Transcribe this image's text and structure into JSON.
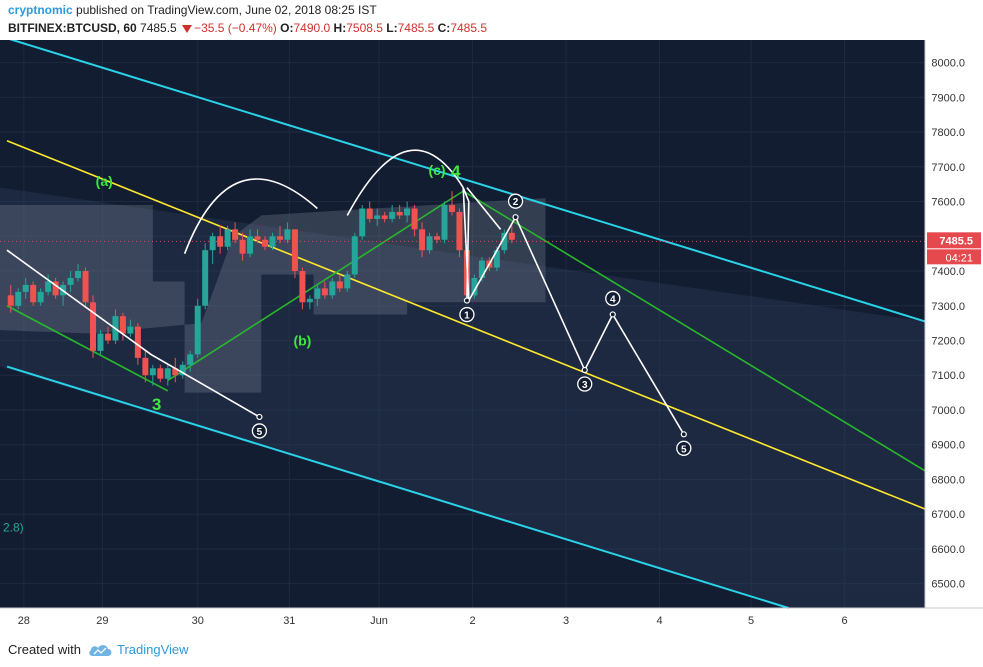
{
  "header": {
    "author": "cryptnomic",
    "published": "published on TradingView.com, June 02, 2018 08:25 IST",
    "symbol": "BITFINEX:BTCUSD, 60",
    "last": "7485.5",
    "change": "−35.5 (−0.47%)",
    "o_label": "O:",
    "o": "7490.0",
    "h_label": "H:",
    "h": "7508.5",
    "l_label": "L:",
    "l": "7485.5",
    "c_label": "C:",
    "c": "7485.5"
  },
  "footer": {
    "created": "Created with",
    "brand": "TradingView"
  },
  "colors": {
    "background": "#131d31",
    "up": "#26a69a",
    "down": "#ef5350",
    "channel_outer": "#29d3e8",
    "channel_mid": "#ffe82e",
    "channel_green": "#27b82b",
    "wave_text": "#3ee83e",
    "price_tag": "#e5484d"
  },
  "chart_data": {
    "type": "candlestick",
    "y_ticks": [
      "8000.0",
      "7900.0",
      "7800.0",
      "7700.0",
      "7600.0",
      "7500.0",
      "7400.0",
      "7300.0",
      "7200.0",
      "7100.0",
      "7000.0",
      "6900.0",
      "6800.0",
      "6700.0",
      "6600.0",
      "6500.0"
    ],
    "ylim": [
      6430,
      8065
    ],
    "x_ticks": [
      "28",
      "29",
      "30",
      "31",
      "Jun",
      "2",
      "3",
      "4",
      "5",
      "6"
    ],
    "price_label": "7485.5",
    "countdown": "04:21",
    "left_label": "2.8)",
    "wave_labels": [
      {
        "text": "(a)",
        "x": 5.2,
        "y": 7645
      },
      {
        "text": "(b)",
        "x": 15.8,
        "y": 7185
      },
      {
        "text": "(c)",
        "x": 23.0,
        "y": 7676
      },
      {
        "text": "4",
        "x": 24.0,
        "y": 7670
      },
      {
        "text": "3",
        "x": 8.0,
        "y": 7000
      }
    ],
    "projection": [
      {
        "label": "1",
        "x": 24.6,
        "y": 7315
      },
      {
        "label": "2",
        "x": 27.2,
        "y": 7555
      },
      {
        "label": "3",
        "x": 30.9,
        "y": 7115
      },
      {
        "label": "4",
        "x": 32.4,
        "y": 7275
      },
      {
        "label": "5",
        "x": 36.2,
        "y": 6930
      }
    ],
    "path_left": [
      {
        "x": 0.0,
        "y": 7460
      },
      {
        "x": 7.7,
        "y": 7160
      },
      {
        "x": 13.5,
        "y": 6980
      }
    ],
    "left_target_label": "5",
    "channels": [
      {
        "name": "upper-cyan",
        "x1": 0.0,
        "y1": 8070,
        "x2": 49.1,
        "y2": 7255
      },
      {
        "name": "lower-cyan",
        "x1": 0.0,
        "y1": 7125,
        "x2": 41.8,
        "y2": 6430
      },
      {
        "name": "yellow",
        "x1": 0.0,
        "y1": 7775,
        "x2": 49.1,
        "y2": 6715
      },
      {
        "name": "green-down",
        "x1": 24.4,
        "y1": 7630,
        "x2": 49.1,
        "y2": 6825
      },
      {
        "name": "green-up",
        "x1": 8.6,
        "y1": 7085,
        "x2": 24.4,
        "y2": 7630
      },
      {
        "name": "green-left",
        "x1": 0.0,
        "y1": 7300,
        "x2": 8.6,
        "y2": 7055
      }
    ],
    "candles": [
      [
        0.2,
        7330,
        7360,
        7280,
        7300
      ],
      [
        0.6,
        7300,
        7350,
        7290,
        7340
      ],
      [
        1.0,
        7340,
        7380,
        7320,
        7360
      ],
      [
        1.4,
        7360,
        7370,
        7300,
        7310
      ],
      [
        1.8,
        7310,
        7350,
        7300,
        7340
      ],
      [
        2.2,
        7340,
        7390,
        7330,
        7370
      ],
      [
        2.6,
        7370,
        7380,
        7320,
        7330
      ],
      [
        3.0,
        7330,
        7370,
        7300,
        7360
      ],
      [
        3.4,
        7360,
        7400,
        7340,
        7380
      ],
      [
        3.8,
        7380,
        7420,
        7370,
        7400
      ],
      [
        4.2,
        7400,
        7410,
        7300,
        7310
      ],
      [
        4.6,
        7310,
        7330,
        7150,
        7170
      ],
      [
        5.0,
        7170,
        7230,
        7160,
        7220
      ],
      [
        5.4,
        7220,
        7240,
        7190,
        7200
      ],
      [
        5.8,
        7200,
        7290,
        7190,
        7270
      ],
      [
        6.2,
        7270,
        7280,
        7200,
        7220
      ],
      [
        6.6,
        7220,
        7260,
        7210,
        7240
      ],
      [
        7.0,
        7240,
        7250,
        7130,
        7150
      ],
      [
        7.4,
        7150,
        7170,
        7080,
        7100
      ],
      [
        7.8,
        7100,
        7130,
        7070,
        7120
      ],
      [
        8.2,
        7120,
        7130,
        7080,
        7090
      ],
      [
        8.6,
        7090,
        7130,
        7070,
        7120
      ],
      [
        9.0,
        7120,
        7150,
        7080,
        7100
      ],
      [
        9.4,
        7100,
        7140,
        7090,
        7130
      ],
      [
        9.8,
        7130,
        7170,
        7110,
        7160
      ],
      [
        10.2,
        7160,
        7320,
        7150,
        7300
      ],
      [
        10.6,
        7300,
        7480,
        7290,
        7460
      ],
      [
        11.0,
        7460,
        7510,
        7420,
        7500
      ],
      [
        11.4,
        7500,
        7530,
        7450,
        7470
      ],
      [
        11.8,
        7470,
        7530,
        7460,
        7520
      ],
      [
        12.2,
        7520,
        7540,
        7480,
        7490
      ],
      [
        12.6,
        7490,
        7510,
        7430,
        7450
      ],
      [
        13.0,
        7450,
        7520,
        7440,
        7500
      ],
      [
        13.4,
        7500,
        7520,
        7480,
        7490
      ],
      [
        13.8,
        7490,
        7500,
        7460,
        7470
      ],
      [
        14.2,
        7470,
        7510,
        7460,
        7500
      ],
      [
        14.6,
        7500,
        7530,
        7480,
        7490
      ],
      [
        15.0,
        7490,
        7540,
        7480,
        7520
      ],
      [
        15.4,
        7520,
        7520,
        7380,
        7400
      ],
      [
        15.8,
        7400,
        7410,
        7290,
        7310
      ],
      [
        16.2,
        7310,
        7330,
        7290,
        7320
      ],
      [
        16.6,
        7320,
        7360,
        7300,
        7350
      ],
      [
        17.0,
        7350,
        7370,
        7320,
        7330
      ],
      [
        17.4,
        7330,
        7380,
        7320,
        7370
      ],
      [
        17.8,
        7370,
        7390,
        7340,
        7350
      ],
      [
        18.2,
        7350,
        7400,
        7340,
        7390
      ],
      [
        18.6,
        7390,
        7510,
        7380,
        7500
      ],
      [
        19.0,
        7500,
        7590,
        7490,
        7580
      ],
      [
        19.4,
        7580,
        7600,
        7540,
        7550
      ],
      [
        19.8,
        7550,
        7580,
        7530,
        7560
      ],
      [
        20.2,
        7560,
        7570,
        7540,
        7550
      ],
      [
        20.6,
        7550,
        7590,
        7540,
        7570
      ],
      [
        21.0,
        7570,
        7590,
        7550,
        7560
      ],
      [
        21.4,
        7560,
        7600,
        7540,
        7580
      ],
      [
        21.8,
        7580,
        7590,
        7500,
        7520
      ],
      [
        22.2,
        7520,
        7540,
        7440,
        7460
      ],
      [
        22.6,
        7460,
        7510,
        7450,
        7500
      ],
      [
        23.0,
        7500,
        7510,
        7480,
        7490
      ],
      [
        23.4,
        7490,
        7600,
        7480,
        7590
      ],
      [
        23.8,
        7590,
        7630,
        7560,
        7570
      ],
      [
        24.2,
        7570,
        7580,
        7440,
        7460
      ],
      [
        24.6,
        7460,
        7470,
        7320,
        7330
      ],
      [
        25.0,
        7330,
        7390,
        7320,
        7380
      ],
      [
        25.4,
        7380,
        7440,
        7370,
        7430
      ],
      [
        25.8,
        7430,
        7440,
        7400,
        7410
      ],
      [
        26.2,
        7410,
        7470,
        7400,
        7460
      ],
      [
        26.6,
        7460,
        7520,
        7450,
        7510
      ],
      [
        27.0,
        7510,
        7530,
        7480,
        7490
      ]
    ]
  }
}
